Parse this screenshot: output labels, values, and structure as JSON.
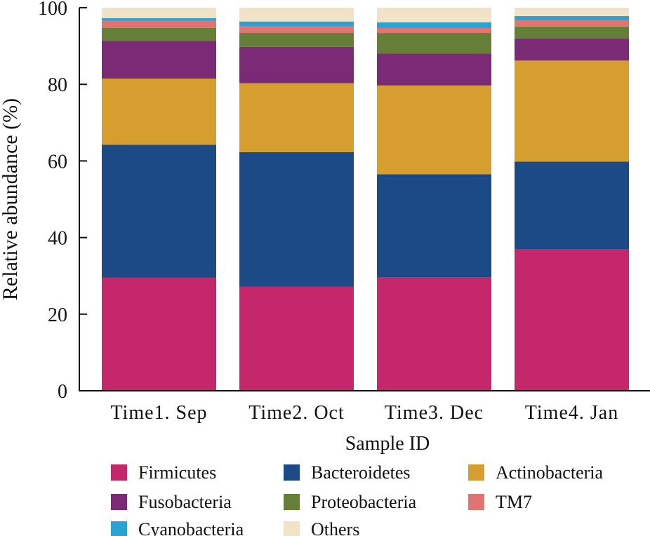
{
  "chart_data": {
    "type": "bar",
    "stacked": true,
    "title": "",
    "xlabel": "Sample ID",
    "ylabel": "Relative abundance (%)",
    "ylim": [
      0,
      100
    ],
    "yticks": [
      0,
      20,
      40,
      60,
      80,
      100
    ],
    "categories": [
      "Time1. Sep",
      "Time2. Oct",
      "Time3. Dec",
      "Time4. Jan"
    ],
    "legend_position": "bottom",
    "series": [
      {
        "name": "Firmicutes",
        "color": "#c4286a",
        "values": [
          29.5,
          27.2,
          29.6,
          37.0
        ]
      },
      {
        "name": "Bacteroidetes",
        "color": "#1b4a86",
        "values": [
          34.7,
          35.1,
          26.9,
          22.8
        ]
      },
      {
        "name": "Actinobacteria",
        "color": "#d59e2e",
        "values": [
          17.3,
          18.0,
          23.2,
          26.4
        ]
      },
      {
        "name": "Fusobacteria",
        "color": "#7b2a75",
        "values": [
          9.8,
          9.5,
          8.3,
          5.8
        ]
      },
      {
        "name": "Proteobacteria",
        "color": "#667f38",
        "values": [
          3.4,
          3.6,
          5.4,
          3.1
        ]
      },
      {
        "name": "TM7",
        "color": "#e07473",
        "values": [
          1.9,
          1.7,
          1.3,
          1.7
        ]
      },
      {
        "name": "Cyanobacteria",
        "color": "#2aa3d3",
        "values": [
          0.7,
          1.3,
          1.5,
          1.0
        ]
      },
      {
        "name": "Others",
        "color": "#f1e3c7",
        "values": [
          2.7,
          3.6,
          3.8,
          2.2
        ]
      }
    ]
  }
}
